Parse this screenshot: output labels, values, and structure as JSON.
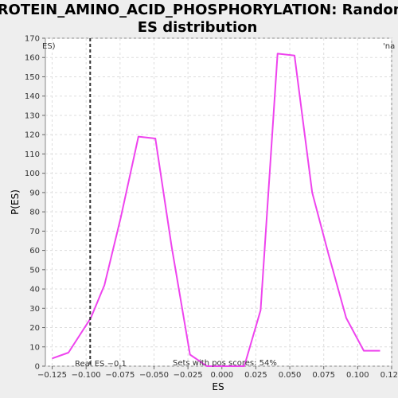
{
  "chart_data": {
    "type": "line",
    "title": "PROTEIN_AMINO_ACID_PHOSPHORYLATION: Random ES distribution",
    "title_lines": [
      "PROTEIN_AMINO_ACID_PHOSPHORYLATION: Random",
      "ES distribution"
    ],
    "xlabel": "ES",
    "ylabel": "P(ES)",
    "xlim": [
      -0.13,
      0.125
    ],
    "ylim": [
      0,
      170
    ],
    "x_ticks": [
      -0.125,
      -0.1,
      -0.075,
      -0.05,
      -0.025,
      0.0,
      0.025,
      0.05,
      0.075,
      0.1,
      0.125
    ],
    "x_tick_labels": [
      "−0.125",
      "−0.100",
      "−0.075",
      "−0.050",
      "−0.025",
      "0.000",
      "0.025",
      "0.050",
      "0.075",
      "0.100",
      "0.125"
    ],
    "y_ticks": [
      0,
      10,
      20,
      30,
      40,
      50,
      60,
      70,
      80,
      90,
      100,
      110,
      120,
      130,
      140,
      150,
      160,
      170
    ],
    "grid": true,
    "line_color": "#ee44ee",
    "series": [
      {
        "x": [
          -0.125,
          -0.113,
          -0.0965,
          -0.0865,
          -0.0745,
          -0.0615,
          -0.049,
          -0.037,
          -0.0235,
          -0.011,
          0.0015,
          0.0165,
          0.0285,
          0.041,
          0.0535,
          0.0665,
          0.0785,
          0.0915,
          0.1045,
          0.1165
        ],
        "y": [
          4,
          7,
          25,
          42,
          77,
          119,
          118,
          62,
          6,
          0,
          0,
          0,
          29,
          162,
          161,
          90,
          58,
          25,
          8,
          8
        ]
      }
    ],
    "real_es": {
      "value": -0.097,
      "label": "Real ES −0.1",
      "color": "#333333"
    },
    "annotation": "Sets with pos scores: 54%",
    "corner_labels": {
      "left": "ES)",
      "left_color": "#d04040",
      "right": "'na",
      "right_color": "#3333cc"
    }
  }
}
